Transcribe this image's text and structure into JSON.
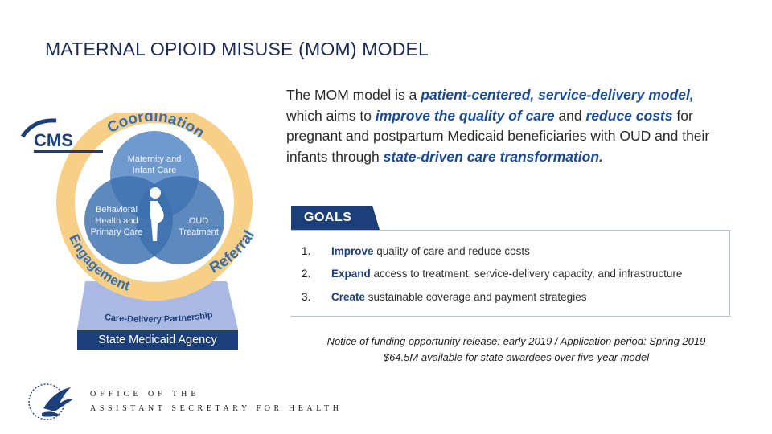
{
  "title": "MATERNAL OPIOID MISUSE (MOM) MODEL",
  "intro": {
    "p1": "The MOM model is a ",
    "h1": "patient-centered, service-delivery model,",
    "p2": " which aims to ",
    "h2": "improve the quality of care",
    "p3": " and ",
    "h3": "reduce costs",
    "p4": " for pregnant and postpartum Medicaid beneficiaries with OUD and their infants through ",
    "h4": "state-driven care transformation."
  },
  "goals": {
    "label": "GOALS",
    "items": [
      {
        "num": "1.",
        "kw": "Improve",
        "rest": " quality of care and reduce costs"
      },
      {
        "num": "2.",
        "kw": "Expand",
        "rest": " access to treatment, service-delivery capacity, and infrastructure"
      },
      {
        "num": "3.",
        "kw": "Create",
        "rest": " sustainable coverage and payment strategies"
      }
    ]
  },
  "notice": {
    "line1": "Notice of funding opportunity release: early 2019 / Application period: Spring 2019",
    "line2": "$64.5M available for state awardees over five-year model"
  },
  "diagram": {
    "ring_coordination": "Coordination",
    "ring_engagement": "Engagement",
    "ring_referral": "Referral",
    "circle_maternity": [
      "Maternity and",
      "Infant Care"
    ],
    "circle_behavioral": [
      "Behavioral",
      "Health and",
      "Primary Care"
    ],
    "circle_oud": [
      "OUD",
      "Treatment"
    ],
    "partnership": "Care-Delivery Partnership",
    "agency": "State Medicaid Agency",
    "cms_logo": "CMS",
    "colors": {
      "ring": "#f8cf86",
      "circle": "#3a6fad",
      "navy": "#1c3f7a",
      "base": "#a9b9e3"
    }
  },
  "footer": {
    "line1": "OFFICE OF THE",
    "line2": "ASSISTANT SECRETARY FOR HEALTH"
  }
}
